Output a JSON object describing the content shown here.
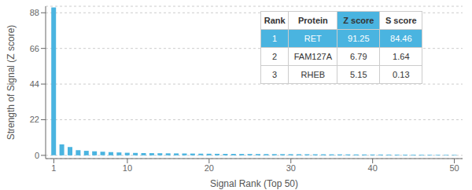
{
  "chart_data": {
    "type": "bar",
    "x": [
      1,
      2,
      3,
      4,
      5,
      6,
      7,
      8,
      9,
      10,
      11,
      12,
      13,
      14,
      15,
      16,
      17,
      18,
      19,
      20,
      21,
      22,
      23,
      24,
      25,
      26,
      27,
      28,
      29,
      30,
      31,
      32,
      33,
      34,
      35,
      36,
      37,
      38,
      39,
      40,
      41,
      42,
      43,
      44,
      45,
      46,
      47,
      48,
      49,
      50
    ],
    "values": [
      91.25,
      6.79,
      5.15,
      3.2,
      2.8,
      2.5,
      2.2,
      2.0,
      1.8,
      1.6,
      1.5,
      1.4,
      1.35,
      1.3,
      1.25,
      1.2,
      1.15,
      1.1,
      1.05,
      1.0,
      0.95,
      0.92,
      0.89,
      0.86,
      0.83,
      0.8,
      0.78,
      0.76,
      0.74,
      0.72,
      0.7,
      0.68,
      0.66,
      0.64,
      0.62,
      0.6,
      0.58,
      0.56,
      0.54,
      0.52,
      0.5,
      0.48,
      0.46,
      0.44,
      0.42,
      0.4,
      0.38,
      0.36,
      0.34,
      0.32
    ],
    "color": "#4ab4e0",
    "xlabel": "Signal Rank (Top 50)",
    "ylabel": "Strength of Signal (Z score)",
    "xlim": [
      0,
      51
    ],
    "ylim": [
      -2,
      92
    ],
    "xticks": [
      1,
      10,
      20,
      30,
      40,
      50
    ],
    "yticks": [
      0,
      22,
      44,
      66,
      88
    ],
    "grid": true,
    "table": {
      "headers": [
        "Rank",
        "Protein",
        "Z score",
        "S score"
      ],
      "rows": [
        [
          "1",
          "RET",
          "91.25",
          "84.46"
        ],
        [
          "2",
          "FAM127A",
          "6.79",
          "1.64"
        ],
        [
          "3",
          "RHEB",
          "5.15",
          "0.13"
        ]
      ]
    }
  }
}
